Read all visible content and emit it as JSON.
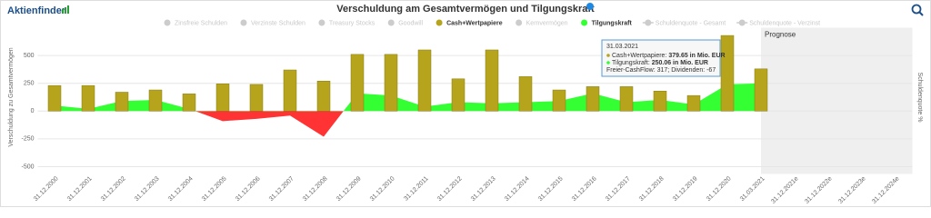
{
  "logo": "Aktienfinder",
  "chart_data": {
    "type": "combo",
    "title": "Verschuldung am Gesamtvermögen und Tilgungskraft",
    "y_label": "Verschuldung zu Gesamtvermögen",
    "y2_label": "Schuldenquote %",
    "forecast_label": "Prognose",
    "categories": [
      "31.12.2000",
      "31.12.2001",
      "31.12.2002",
      "31.12.2003",
      "31.12.2004",
      "31.12.2005",
      "31.12.2006",
      "31.12.2007",
      "31.12.2008",
      "31.12.2009",
      "31.12.2010",
      "31.12.2011",
      "31.12.2012",
      "31.12.2013",
      "31.12.2014",
      "31.12.2015",
      "31.12.2016",
      "31.12.2017",
      "31.12.2018",
      "31.12.2019",
      "31.12.2020",
      "31.03.2021",
      "31.12.2021e",
      "31.12.2022e",
      "31.12.2023e",
      "31.12.2024e"
    ],
    "ylim": [
      -500,
      750
    ],
    "yticks": [
      -500,
      -250,
      0,
      250,
      500
    ],
    "grid": true,
    "series": [
      {
        "name": "Zinsfreie Schulden",
        "visible": false,
        "marker": "dot"
      },
      {
        "name": "Verzinste Schulden",
        "visible": false,
        "marker": "dot"
      },
      {
        "name": "Treasury Stocks",
        "visible": false,
        "marker": "dot"
      },
      {
        "name": "Goodwill",
        "visible": false,
        "marker": "dot"
      },
      {
        "name": "Cash+Wertpapiere",
        "visible": true,
        "marker": "dot",
        "type": "bar",
        "color": "#b5a41c",
        "values": [
          230,
          230,
          170,
          190,
          155,
          245,
          240,
          370,
          270,
          510,
          510,
          550,
          290,
          550,
          310,
          190,
          220,
          220,
          180,
          140,
          680,
          379.65,
          null,
          null,
          null,
          null
        ]
      },
      {
        "name": "Kernvermögen",
        "visible": false,
        "marker": "dot"
      },
      {
        "name": "Tilgungskraft",
        "visible": true,
        "marker": "dot",
        "type": "area",
        "color": "#33ff33",
        "negative_color": "#ff3333",
        "values": [
          50,
          20,
          90,
          100,
          20,
          -90,
          -70,
          -40,
          -230,
          160,
          140,
          40,
          80,
          70,
          80,
          90,
          160,
          80,
          100,
          60,
          240,
          250.06,
          null,
          null,
          null,
          null
        ]
      },
      {
        "name": "Schuldenquote - Gesamt",
        "visible": false,
        "marker": "line"
      },
      {
        "name": "Schuldenquote - Verzinst",
        "visible": false,
        "marker": "line"
      }
    ],
    "tooltip": {
      "title": "31.03.2021",
      "lines": [
        {
          "label": "Cash+Wertpapiere: ",
          "value": "379.65 in Mio. EUR",
          "color": "#b5a41c"
        },
        {
          "label": "Tilgungskraft: ",
          "value": "250.06 in Mio. EUR",
          "color": "#33ff33"
        }
      ],
      "note": "Freier-CashFlow: 317; Dividenden: -67"
    }
  }
}
